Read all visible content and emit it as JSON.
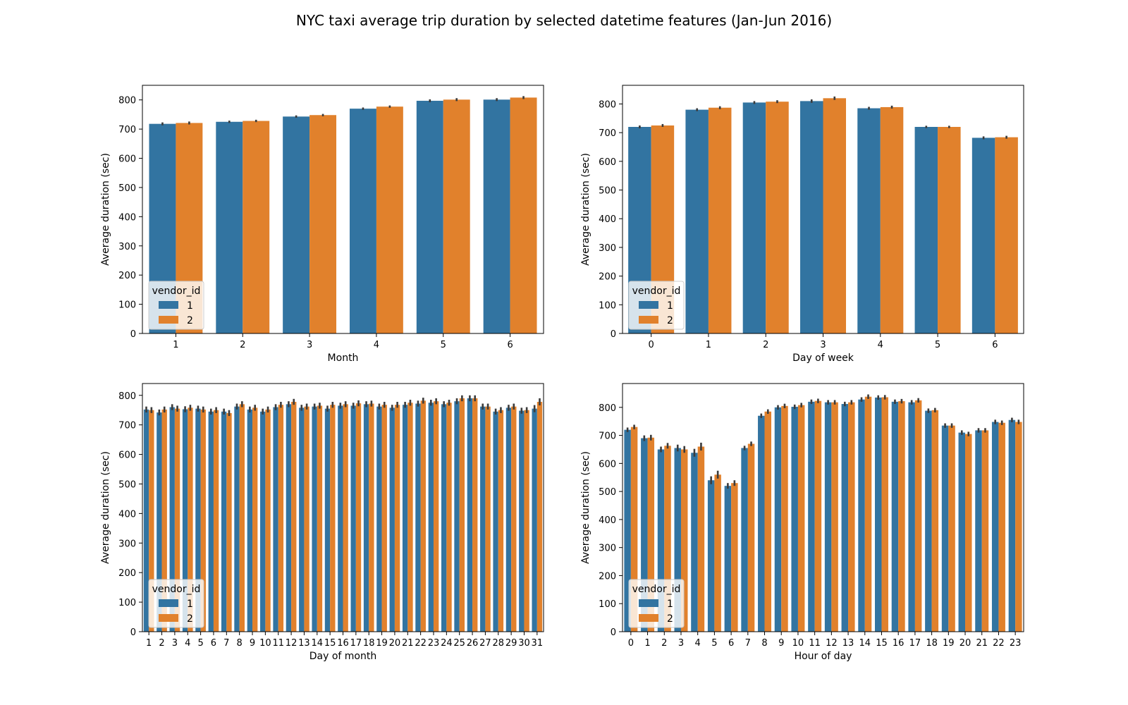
{
  "figure_title": "NYC taxi average trip duration by selected datetime features (Jan-Jun 2016)",
  "colors": {
    "vendor_1": "#3274a1",
    "vendor_2": "#e1812c",
    "errorbar": "#3b3b3b"
  },
  "chart_data": [
    {
      "type": "bar",
      "xlabel": "Month",
      "ylabel": "Average duration (sec)",
      "ylim": [
        0,
        850
      ],
      "yticks": [
        0,
        100,
        200,
        300,
        400,
        500,
        600,
        700,
        800
      ],
      "categories": [
        "1",
        "2",
        "3",
        "4",
        "5",
        "6"
      ],
      "legend": {
        "title": "vendor_id",
        "entries": [
          "1",
          "2"
        ],
        "placement": "lower-left"
      },
      "series": [
        {
          "name": "1",
          "values": [
            718,
            725,
            743,
            770,
            797,
            801
          ],
          "error": [
            5,
            4,
            4,
            4,
            5,
            5
          ]
        },
        {
          "name": "2",
          "values": [
            721,
            728,
            748,
            777,
            801,
            808
          ],
          "error": [
            5,
            4,
            4,
            4,
            5,
            5
          ]
        }
      ]
    },
    {
      "type": "bar",
      "xlabel": "Day of week",
      "ylabel": "Average duration (sec)",
      "ylim": [
        0,
        865
      ],
      "yticks": [
        0,
        100,
        200,
        300,
        400,
        500,
        600,
        700,
        800
      ],
      "categories": [
        "0",
        "1",
        "2",
        "3",
        "4",
        "5",
        "6"
      ],
      "legend": {
        "title": "vendor_id",
        "entries": [
          "1",
          "2"
        ],
        "placement": "lower-left"
      },
      "series": [
        {
          "name": "1",
          "values": [
            720,
            780,
            805,
            810,
            785,
            720,
            682
          ],
          "error": [
            5,
            5,
            5,
            6,
            5,
            4,
            5
          ]
        },
        {
          "name": "2",
          "values": [
            725,
            787,
            808,
            820,
            789,
            720,
            684
          ],
          "error": [
            5,
            5,
            5,
            6,
            5,
            4,
            5
          ]
        }
      ]
    },
    {
      "type": "bar",
      "xlabel": "Day of month",
      "ylabel": "Average duration (sec)",
      "ylim": [
        0,
        840
      ],
      "yticks": [
        0,
        100,
        200,
        300,
        400,
        500,
        600,
        700,
        800
      ],
      "categories": [
        "1",
        "2",
        "3",
        "4",
        "5",
        "6",
        "7",
        "8",
        "9",
        "10",
        "11",
        "12",
        "13",
        "14",
        "15",
        "16",
        "17",
        "18",
        "19",
        "20",
        "21",
        "22",
        "23",
        "24",
        "25",
        "26",
        "27",
        "28",
        "29",
        "30",
        "31"
      ],
      "legend": {
        "title": "vendor_id",
        "entries": [
          "1",
          "2"
        ],
        "placement": "lower-left"
      },
      "series": [
        {
          "name": "1",
          "values": [
            752,
            742,
            760,
            753,
            755,
            745,
            745,
            762,
            752,
            745,
            760,
            770,
            758,
            762,
            755,
            765,
            765,
            770,
            762,
            758,
            768,
            772,
            775,
            770,
            780,
            790,
            762,
            745,
            758,
            748,
            755
          ],
          "error": [
            10,
            10,
            10,
            10,
            10,
            10,
            10,
            10,
            10,
            10,
            10,
            10,
            10,
            10,
            10,
            10,
            10,
            10,
            10,
            10,
            10,
            10,
            10,
            10,
            10,
            10,
            10,
            10,
            10,
            10,
            12
          ]
        },
        {
          "name": "2",
          "values": [
            750,
            752,
            755,
            758,
            752,
            750,
            740,
            770,
            758,
            752,
            768,
            778,
            762,
            765,
            768,
            770,
            773,
            772,
            768,
            768,
            775,
            782,
            780,
            775,
            790,
            790,
            762,
            750,
            762,
            750,
            778
          ],
          "error": [
            10,
            10,
            10,
            10,
            10,
            10,
            10,
            10,
            10,
            10,
            10,
            10,
            10,
            10,
            10,
            10,
            10,
            10,
            10,
            10,
            10,
            10,
            10,
            10,
            10,
            10,
            10,
            10,
            10,
            10,
            12
          ]
        }
      ]
    },
    {
      "type": "bar",
      "xlabel": "Hour of day",
      "ylabel": "Average duration (sec)",
      "ylim": [
        0,
        885
      ],
      "yticks": [
        0,
        100,
        200,
        300,
        400,
        500,
        600,
        700,
        800
      ],
      "categories": [
        "0",
        "1",
        "2",
        "3",
        "4",
        "5",
        "6",
        "7",
        "8",
        "9",
        "10",
        "11",
        "12",
        "13",
        "14",
        "15",
        "16",
        "17",
        "18",
        "19",
        "20",
        "21",
        "22",
        "23"
      ],
      "legend": {
        "title": "vendor_id",
        "entries": [
          "1",
          "2"
        ],
        "placement": "lower-left"
      },
      "series": [
        {
          "name": "1",
          "values": [
            720,
            690,
            650,
            655,
            638,
            540,
            520,
            655,
            770,
            800,
            802,
            820,
            818,
            812,
            828,
            835,
            820,
            818,
            788,
            735,
            710,
            718,
            748,
            755
          ],
          "error": [
            8,
            10,
            10,
            12,
            14,
            14,
            10,
            8,
            8,
            8,
            8,
            8,
            8,
            8,
            8,
            8,
            8,
            8,
            8,
            8,
            8,
            8,
            8,
            8
          ]
        },
        {
          "name": "2",
          "values": [
            730,
            692,
            663,
            650,
            660,
            560,
            530,
            670,
            785,
            805,
            808,
            823,
            818,
            818,
            838,
            836,
            822,
            825,
            790,
            735,
            705,
            718,
            745,
            748
          ],
          "error": [
            8,
            10,
            10,
            12,
            14,
            14,
            10,
            8,
            8,
            8,
            8,
            8,
            8,
            8,
            8,
            8,
            8,
            8,
            8,
            8,
            8,
            8,
            8,
            8
          ]
        }
      ]
    }
  ]
}
